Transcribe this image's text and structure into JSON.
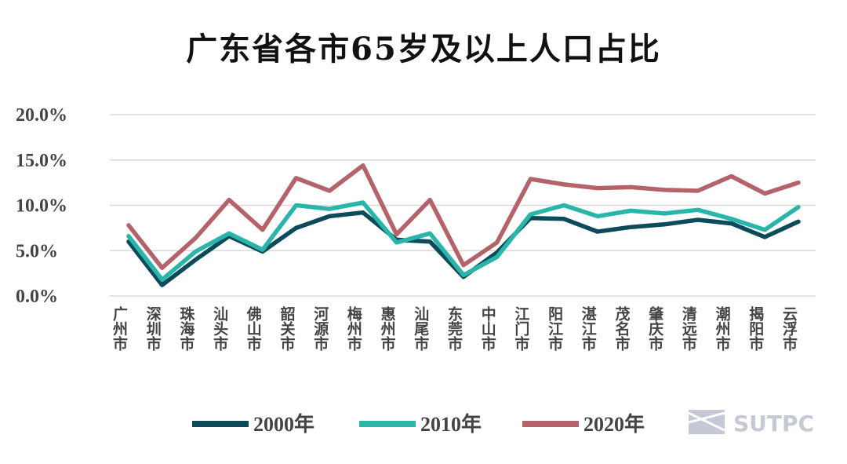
{
  "chart_data": {
    "type": "line",
    "title": "广东省各市65岁及以上人口占比",
    "categories": [
      "广州市",
      "深圳市",
      "珠海市",
      "汕头市",
      "佛山市",
      "韶关市",
      "河源市",
      "梅州市",
      "惠州市",
      "汕尾市",
      "东莞市",
      "中山市",
      "江门市",
      "阳江市",
      "湛江市",
      "茂名市",
      "肇庆市",
      "清远市",
      "潮州市",
      "揭阳市",
      "云浮市"
    ],
    "y_ticks": [
      "0.0%",
      "5.0%",
      "10.0%",
      "15.0%",
      "20.0%"
    ],
    "ylim": [
      0,
      20
    ],
    "grid": true,
    "legend_position": "bottom",
    "series": [
      {
        "name": "2000年",
        "color": "#0d4a5a",
        "values": [
          6.0,
          1.2,
          4.0,
          6.6,
          4.9,
          7.5,
          8.8,
          9.2,
          6.2,
          6.0,
          2.1,
          4.8,
          8.6,
          8.5,
          7.1,
          7.6,
          7.9,
          8.4,
          8.0,
          6.5,
          8.2
        ]
      },
      {
        "name": "2010年",
        "color": "#2ab5ab",
        "values": [
          6.6,
          1.8,
          4.9,
          6.9,
          5.1,
          10.0,
          9.6,
          10.3,
          5.9,
          6.9,
          2.3,
          4.3,
          9.0,
          10.0,
          8.8,
          9.4,
          9.1,
          9.5,
          8.5,
          7.3,
          9.8
        ]
      },
      {
        "name": "2020年",
        "color": "#b5636b",
        "values": [
          7.8,
          3.1,
          6.4,
          10.6,
          7.3,
          13.0,
          11.6,
          14.4,
          6.8,
          10.6,
          3.4,
          5.9,
          12.9,
          12.3,
          11.9,
          12.0,
          11.7,
          11.6,
          13.2,
          11.3,
          12.5
        ]
      }
    ]
  },
  "watermark": {
    "text": "SUTPC",
    "icon": "sutpc-logo-icon"
  }
}
